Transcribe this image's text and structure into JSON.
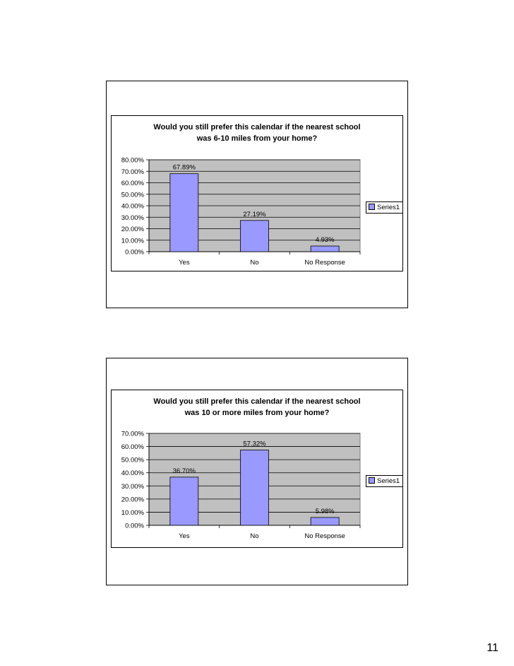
{
  "page": {
    "number": "11"
  },
  "slides": [
    {
      "title_lines": [
        "Would you still prefer this calendar if the nearest school",
        "was 6-10 miles from your home?"
      ],
      "legend_label": "Series1"
    },
    {
      "title_lines": [
        "Would you still prefer this calendar if the nearest school",
        "was 10 or more miles from your home?"
      ],
      "legend_label": "Series1"
    }
  ],
  "colors": {
    "bar_fill": "#9999ff",
    "plot_bg": "#c0c0c0",
    "gridline": "#000000"
  },
  "chart_data": [
    {
      "type": "bar",
      "title": "Would you still prefer this calendar if the nearest school was 6-10 miles from your home?",
      "categories": [
        "Yes",
        "No",
        "No Response"
      ],
      "series": [
        {
          "name": "Series1",
          "values": [
            67.89,
            27.19,
            4.93
          ]
        }
      ],
      "data_labels": [
        "67.89%",
        "27.19%",
        "4.93%"
      ],
      "ylim": [
        0,
        80
      ],
      "yticks": [
        "0.00%",
        "10.00%",
        "20.00%",
        "30.00%",
        "40.00%",
        "50.00%",
        "60.00%",
        "70.00%",
        "80.00%"
      ],
      "grid": true,
      "legend": "right"
    },
    {
      "type": "bar",
      "title": "Would you still prefer this calendar if the nearest school was 10 or more miles from your home?",
      "categories": [
        "Yes",
        "No",
        "No Response"
      ],
      "series": [
        {
          "name": "Series1",
          "values": [
            36.7,
            57.32,
            5.98
          ]
        }
      ],
      "data_labels": [
        "36.70%",
        "57.32%",
        "5.98%"
      ],
      "ylim": [
        0,
        70
      ],
      "yticks": [
        "0.00%",
        "10.00%",
        "20.00%",
        "30.00%",
        "40.00%",
        "50.00%",
        "60.00%",
        "70.00%"
      ],
      "grid": true,
      "legend": "right"
    }
  ]
}
